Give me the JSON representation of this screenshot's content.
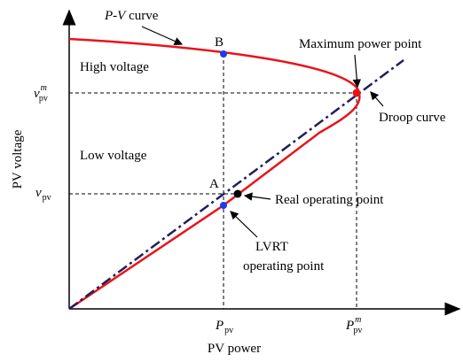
{
  "axes": {
    "y_label": "PV voltage",
    "x_label": "PV power"
  },
  "curves": {
    "pv_curve": {
      "italic": "P-V",
      "text": "curve"
    },
    "droop": "Droop curve"
  },
  "regions": {
    "high": "High voltage",
    "low": "Low voltage"
  },
  "points": {
    "B": "B",
    "A": "A",
    "max": "Maximum power point",
    "real": "Real operating point",
    "lvrt": [
      "LVRT",
      "operating point"
    ]
  },
  "ticks": {
    "v_m": {
      "main": "v",
      "sub": "pv",
      "sup": "m"
    },
    "v": {
      "main": "v",
      "sub": "pv"
    },
    "p": {
      "main": "P",
      "sub": "pv"
    },
    "p_m": {
      "main": "P",
      "sub": "pv",
      "sup": "m"
    }
  }
}
